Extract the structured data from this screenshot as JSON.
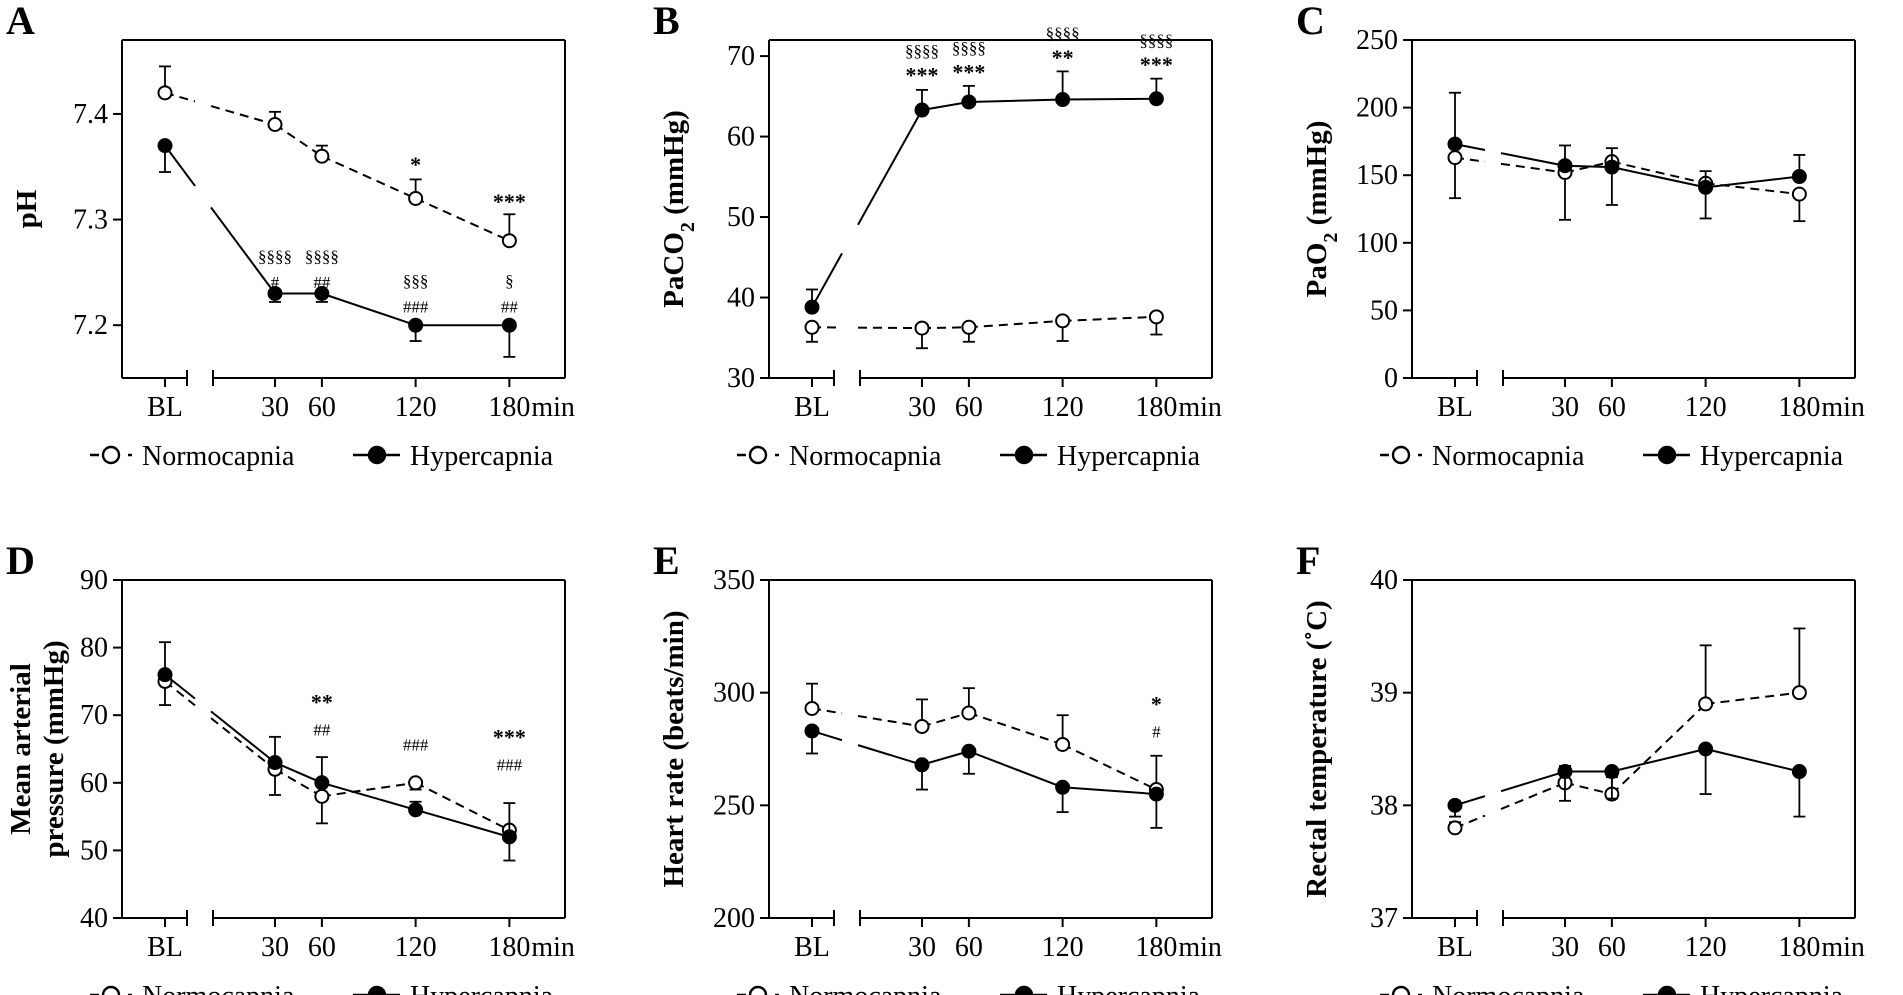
{
  "chart_data": [
    {
      "type": "line",
      "panel": "A",
      "title": "",
      "ylabel": "pH",
      "ylabel_lines": [
        "pH"
      ],
      "xlabel": "",
      "x_unit": "min",
      "categories": [
        "BL",
        "30",
        "60",
        "120",
        "180"
      ],
      "x": [
        0,
        30,
        60,
        120,
        180
      ],
      "yticks": [
        7.2,
        7.3,
        7.4
      ],
      "ytick_labels": [
        "7.2",
        "7.3",
        "7.4"
      ],
      "ylim": [
        7.15,
        7.47
      ],
      "legend_position": "bottom",
      "series": [
        {
          "name": "Normocapnia",
          "style": "dashed-open",
          "values": [
            7.42,
            7.39,
            7.36,
            7.32,
            7.28
          ],
          "error": [
            0.025,
            0.012,
            0.01,
            0.018,
            0.025
          ],
          "error_dir": "up"
        },
        {
          "name": "Hypercapnia",
          "style": "solid-filled",
          "values": [
            7.37,
            7.23,
            7.23,
            7.2,
            7.2
          ],
          "error": [
            0.025,
            0.008,
            0.008,
            0.015,
            0.03
          ],
          "error_dir": "down"
        }
      ],
      "annotations": [
        {
          "x": 120,
          "y": 7.345,
          "lines": [
            "*"
          ]
        },
        {
          "x": 180,
          "y": 7.31,
          "lines": [
            "***"
          ]
        },
        {
          "x": 30,
          "y": 7.235,
          "lines": [
            "§§§§",
            "#"
          ]
        },
        {
          "x": 60,
          "y": 7.235,
          "lines": [
            "§§§§",
            "##"
          ]
        },
        {
          "x": 120,
          "y": 7.212,
          "lines": [
            "§§§",
            "###"
          ]
        },
        {
          "x": 180,
          "y": 7.212,
          "lines": [
            "§",
            "##"
          ]
        }
      ]
    },
    {
      "type": "line",
      "panel": "B",
      "title": "",
      "ylabel": "PaCO2 (mmHg)",
      "ylabel_lines": [
        "PaCO2 (mmHg)"
      ],
      "xlabel": "",
      "x_unit": "min",
      "categories": [
        "BL",
        "30",
        "60",
        "120",
        "180"
      ],
      "x": [
        0,
        30,
        60,
        120,
        180
      ],
      "yticks": [
        30,
        40,
        50,
        60,
        70
      ],
      "ytick_labels": [
        "30",
        "40",
        "50",
        "60",
        "70"
      ],
      "ylim": [
        30,
        72
      ],
      "legend_position": "bottom",
      "series": [
        {
          "name": "Normocapnia",
          "style": "dashed-open",
          "values": [
            36.3,
            36.2,
            36.3,
            37.1,
            37.6
          ],
          "error": [
            1.8,
            2.5,
            1.8,
            2.5,
            2.2
          ],
          "error_dir": "down"
        },
        {
          "name": "Hypercapnia",
          "style": "solid-filled",
          "values": [
            38.8,
            63.3,
            64.3,
            64.6,
            64.7
          ],
          "error": [
            2.2,
            2.5,
            2.0,
            3.5,
            2.5
          ],
          "error_dir": "up"
        }
      ],
      "annotations": [
        {
          "x": 30,
          "y": 66.7,
          "lines": [
            "§§§§",
            "***"
          ]
        },
        {
          "x": 60,
          "y": 67.1,
          "lines": [
            "§§§§",
            "***"
          ]
        },
        {
          "x": 120,
          "y": 68.9,
          "lines": [
            "§§§§",
            "**"
          ]
        },
        {
          "x": 180,
          "y": 68.0,
          "lines": [
            "§§§§",
            "***"
          ]
        }
      ]
    },
    {
      "type": "line",
      "panel": "C",
      "title": "",
      "ylabel": "PaO2 (mmHg)",
      "ylabel_lines": [
        "PaO2 (mmHg)"
      ],
      "xlabel": "",
      "x_unit": "min",
      "categories": [
        "BL",
        "30",
        "60",
        "120",
        "180"
      ],
      "x": [
        0,
        30,
        60,
        120,
        180
      ],
      "yticks": [
        0,
        50,
        100,
        150,
        200,
        250
      ],
      "ytick_labels": [
        "0",
        "50",
        "100",
        "150",
        "200",
        "250"
      ],
      "ylim": [
        0,
        250
      ],
      "legend_position": "bottom",
      "series": [
        {
          "name": "Normocapnia",
          "style": "dashed-open",
          "values": [
            163,
            152,
            160,
            144,
            136
          ],
          "error": [
            30,
            35,
            32,
            26,
            20
          ],
          "error_dir": "down"
        },
        {
          "name": "Hypercapnia",
          "style": "solid-filled",
          "values": [
            173,
            157,
            156,
            141,
            149
          ],
          "error": [
            38,
            15,
            14,
            12,
            16
          ],
          "error_dir": "up"
        }
      ],
      "annotations": []
    },
    {
      "type": "line",
      "panel": "D",
      "title": "",
      "ylabel": "Mean arterial pressure (mmHg)",
      "ylabel_lines": [
        "Mean arterial",
        "pressure (mmHg)"
      ],
      "xlabel": "",
      "x_unit": "min",
      "categories": [
        "BL",
        "30",
        "60",
        "120",
        "180"
      ],
      "x": [
        0,
        30,
        60,
        120,
        180
      ],
      "yticks": [
        40,
        50,
        60,
        70,
        80,
        90
      ],
      "ytick_labels": [
        "40",
        "50",
        "60",
        "70",
        "80",
        "90"
      ],
      "ylim": [
        40,
        90
      ],
      "legend_position": "bottom",
      "series": [
        {
          "name": "Normocapnia",
          "style": "dashed-open",
          "values": [
            75,
            62,
            58,
            60,
            53
          ],
          "error": [
            3.5,
            3.8,
            4.0,
            1.0,
            4.5
          ],
          "error_dir": "down"
        },
        {
          "name": "Hypercapnia",
          "style": "solid-filled",
          "values": [
            76,
            63,
            60,
            56,
            52
          ],
          "error": [
            4.8,
            3.8,
            3.8,
            1.2,
            5.0
          ],
          "error_dir": "up"
        }
      ],
      "annotations": [
        {
          "x": 60,
          "y": 67.0,
          "lines": [
            "**",
            "##"
          ]
        },
        {
          "x": 120,
          "y": 64.8,
          "lines": [
            "###"
          ]
        },
        {
          "x": 180,
          "y": 61.8,
          "lines": [
            "***",
            "###"
          ]
        }
      ]
    },
    {
      "type": "line",
      "panel": "E",
      "title": "",
      "ylabel": "Heart rate (beats/min)",
      "ylabel_lines": [
        "Heart rate (beats/min)"
      ],
      "xlabel": "",
      "x_unit": "min",
      "categories": [
        "BL",
        "30",
        "60",
        "120",
        "180"
      ],
      "x": [
        0,
        30,
        60,
        120,
        180
      ],
      "yticks": [
        200,
        250,
        300,
        350
      ],
      "ytick_labels": [
        "200",
        "250",
        "300",
        "350"
      ],
      "ylim": [
        200,
        350
      ],
      "legend_position": "bottom",
      "series": [
        {
          "name": "Normocapnia",
          "style": "dashed-open",
          "values": [
            293,
            285,
            291,
            277,
            257
          ],
          "error": [
            11,
            12,
            11,
            13,
            15
          ],
          "error_dir": "up"
        },
        {
          "name": "Hypercapnia",
          "style": "solid-filled",
          "values": [
            283,
            268,
            274,
            258,
            255
          ],
          "error": [
            10,
            11,
            10,
            11,
            15
          ],
          "error_dir": "down"
        }
      ],
      "annotations": [
        {
          "x": 180,
          "y": 280,
          "lines": [
            "*",
            "#"
          ]
        }
      ]
    },
    {
      "type": "line",
      "panel": "F",
      "title": "",
      "ylabel": "Rectal temperature (˚C)",
      "ylabel_lines": [
        "Rectal temperature (˚C)"
      ],
      "xlabel": "",
      "x_unit": "min",
      "categories": [
        "BL",
        "30",
        "60",
        "120",
        "180"
      ],
      "x": [
        0,
        30,
        60,
        120,
        180
      ],
      "yticks": [
        37,
        38,
        39,
        40
      ],
      "ytick_labels": [
        "37",
        "38",
        "39",
        "40"
      ],
      "ylim": [
        37,
        40
      ],
      "legend_position": "bottom",
      "series": [
        {
          "name": "Normocapnia",
          "style": "dashed-open",
          "values": [
            37.8,
            38.2,
            38.1,
            38.9,
            39.0
          ],
          "error": [
            0.05,
            0.15,
            0.15,
            0.52,
            0.57
          ],
          "error_dir": "up"
        },
        {
          "name": "Hypercapnia",
          "style": "solid-filled",
          "values": [
            38.0,
            38.3,
            38.3,
            38.5,
            38.3
          ],
          "error": [
            0.1,
            0.26,
            0.24,
            0.4,
            0.4
          ],
          "error_dir": "down"
        }
      ],
      "annotations": []
    }
  ]
}
